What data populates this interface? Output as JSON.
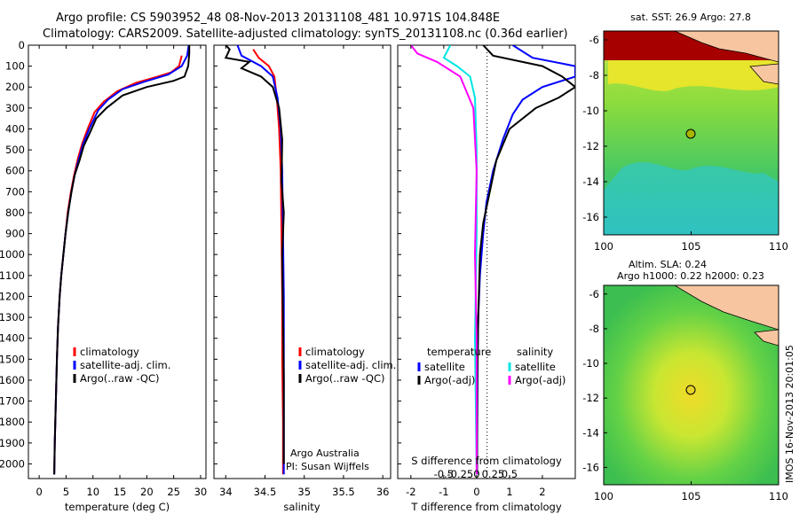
{
  "header": {
    "line1": "Argo profile: CS 5903952_48 08-Nov-2013 20131108_481 10.971S 104.848E",
    "line2": "Climatology: CARS2009. Satellite-adjusted climatology: synTS_20131108.nc (0.36d earlier)"
  },
  "colors": {
    "climatology": "#ff0000",
    "satellite": "#0000ff",
    "argo": "#000000",
    "sat_salinity": "#00e5e5",
    "argo_salinity_diff": "#ff00ff",
    "land": "#f7c6a0"
  },
  "footer": {
    "credit": "Argo Australia",
    "pi": "PI: Susan Wijffels",
    "imos_stamp": "IMOS 16-Nov-2013 20:01:05"
  },
  "chart_data": [
    {
      "id": "temperature",
      "type": "line",
      "xlabel": "temperature (deg C)",
      "ylabel": "",
      "xlim": [
        -2,
        31
      ],
      "ylim": [
        2070,
        0
      ],
      "xticks": [
        0,
        5,
        10,
        15,
        20,
        25,
        30
      ],
      "yticks": [
        0,
        100,
        200,
        300,
        400,
        500,
        600,
        700,
        800,
        900,
        1000,
        1100,
        1200,
        1300,
        1400,
        1500,
        1600,
        1700,
        1800,
        1900,
        2000
      ],
      "legend": [
        "climatology",
        "satellite-adj. clim.",
        "Argo(..raw -QC)"
      ],
      "legend_position": "lower-center",
      "series": [
        {
          "name": "climatology",
          "color": "#ff0000",
          "x": [
            26.5,
            26.0,
            24.5,
            22.0,
            18.0,
            14.5,
            12.0,
            10.3,
            9.0,
            8.0,
            7.2,
            6.5,
            5.9,
            5.3,
            4.9,
            4.5,
            4.1,
            3.8,
            3.5,
            3.3,
            3.1,
            2.9,
            2.8
          ],
          "y": [
            50,
            100,
            130,
            150,
            180,
            220,
            270,
            320,
            400,
            470,
            540,
            620,
            700,
            800,
            900,
            1000,
            1100,
            1200,
            1350,
            1500,
            1700,
            1900,
            2050
          ]
        },
        {
          "name": "satellite-adj. clim.",
          "color": "#0000ff",
          "x": [
            27.8,
            27.5,
            26.5,
            24.0,
            19.5,
            15.5,
            12.8,
            11.0,
            9.3,
            8.2,
            7.4,
            6.6,
            6.0,
            5.4,
            4.9,
            4.5,
            4.1,
            3.8,
            3.5,
            3.3,
            3.1,
            2.9,
            2.8
          ],
          "y": [
            0,
            50,
            100,
            140,
            175,
            210,
            260,
            310,
            400,
            470,
            540,
            620,
            700,
            800,
            900,
            1000,
            1100,
            1200,
            1350,
            1500,
            1700,
            1900,
            2050
          ]
        },
        {
          "name": "Argo(..raw -QC)",
          "color": "#000000",
          "x": [
            27.9,
            27.9,
            27.7,
            27.0,
            25.0,
            20.0,
            15.5,
            12.5,
            10.6,
            9.4,
            8.3,
            7.5,
            6.6,
            6.0,
            5.4,
            4.9,
            4.5,
            4.1,
            3.8,
            3.5,
            3.3,
            3.1,
            2.9,
            2.8
          ],
          "y": [
            0,
            40,
            100,
            150,
            170,
            200,
            240,
            300,
            350,
            420,
            480,
            550,
            620,
            700,
            800,
            900,
            1000,
            1100,
            1200,
            1350,
            1500,
            1700,
            1900,
            2050
          ]
        }
      ]
    },
    {
      "id": "salinity",
      "type": "line",
      "xlabel": "salinity",
      "ylabel": "",
      "xlim": [
        33.85,
        36.1
      ],
      "ylim": [
        2070,
        0
      ],
      "xticks": [
        34,
        34.5,
        35,
        35.5,
        36
      ],
      "legend": [
        "climatology",
        "satellite-adj. clim.",
        "Argo(..raw -QC)"
      ],
      "legend_position": "lower-center",
      "series": [
        {
          "name": "climatology",
          "color": "#ff0000",
          "x": [
            34.35,
            34.42,
            34.55,
            34.62,
            34.65,
            34.68,
            34.7,
            34.71,
            34.72,
            34.72,
            34.73,
            34.73
          ],
          "y": [
            20,
            60,
            100,
            150,
            250,
            400,
            600,
            900,
            1200,
            1500,
            1800,
            2050
          ]
        },
        {
          "name": "satellite-adj. clim.",
          "color": "#0000ff",
          "x": [
            34.15,
            34.2,
            34.45,
            34.6,
            34.66,
            34.7,
            34.72,
            34.73,
            34.74,
            34.74,
            34.74,
            34.74
          ],
          "y": [
            0,
            50,
            100,
            150,
            250,
            400,
            600,
            900,
            1200,
            1500,
            1800,
            2050
          ]
        },
        {
          "name": "Argo(..raw -QC)",
          "color": "#000000",
          "x": [
            34.0,
            34.05,
            34.0,
            34.3,
            34.2,
            34.45,
            34.6,
            34.68,
            34.72,
            34.71,
            34.74,
            34.72,
            34.73,
            34.74,
            34.74
          ],
          "y": [
            0,
            20,
            60,
            80,
            110,
            150,
            200,
            300,
            450,
            650,
            800,
            1000,
            1300,
            1600,
            2000
          ]
        }
      ]
    },
    {
      "id": "difference",
      "type": "line",
      "xlabel": "T difference from climatology",
      "x2label": "S difference from climatology",
      "ylabel": "",
      "xlim": [
        -2.4,
        3.0
      ],
      "ylim": [
        2070,
        0
      ],
      "xticks": [
        -2,
        -1,
        0,
        1,
        2
      ],
      "x2ticks": [
        "-0.5",
        "-0.25",
        "0",
        "0.25",
        "0.5"
      ],
      "x2tick_values": [
        -1,
        -0.5,
        0,
        0.5,
        1
      ],
      "legend_left_title": "temperature",
      "legend_right_title": "salinity",
      "legend": [
        "satellite",
        "Argo(-adj)",
        "satellite",
        "Argo(-adj)"
      ],
      "legend_position": "lower-center",
      "series": [
        {
          "name": "satellite",
          "color": "#0000ff",
          "x": [
            1.1,
            1.7,
            3.0,
            3.0,
            2.0,
            1.4,
            1.1,
            0.8,
            0.5,
            0.3,
            0.2,
            0.1,
            0.05,
            0.03,
            0.02,
            0.01
          ],
          "y": [
            0,
            60,
            100,
            150,
            200,
            260,
            330,
            450,
            600,
            750,
            900,
            1100,
            1300,
            1500,
            1800,
            2050
          ]
        },
        {
          "name": "Argo(-adj)",
          "color": "#000000",
          "x": [
            0.2,
            0.5,
            2.0,
            2.6,
            3.0,
            2.5,
            1.8,
            1.0,
            0.6,
            0.4,
            0.2,
            0.1,
            0.05,
            0.02,
            0.01
          ],
          "y": [
            0,
            50,
            100,
            150,
            200,
            250,
            300,
            400,
            550,
            700,
            850,
            1000,
            1300,
            1600,
            2050
          ]
        },
        {
          "name": "satellite",
          "color": "#00e5e5",
          "x": [
            -0.8,
            -1.0,
            -0.6,
            -0.2,
            -0.05,
            0.0,
            0.0,
            -0.05,
            0.0
          ],
          "y": [
            0,
            60,
            100,
            150,
            250,
            500,
            900,
            1400,
            2050
          ]
        },
        {
          "name": "Argo(-adj)",
          "color": "#ff00ff",
          "x": [
            -2.0,
            -1.8,
            -1.2,
            -0.5,
            -0.1,
            0.0,
            -0.05,
            0.0,
            0.0
          ],
          "y": [
            0,
            40,
            80,
            150,
            300,
            600,
            1000,
            1400,
            2050
          ]
        }
      ]
    },
    {
      "id": "sst_map",
      "type": "heatmap",
      "title": "sat. SST: 26.9 Argo: 27.8",
      "xlim": [
        100,
        110
      ],
      "ylim": [
        -17,
        -5.5
      ],
      "xticks": [
        100,
        105,
        110
      ],
      "yticks": [
        -6,
        -8,
        -10,
        -12,
        -14,
        -16
      ],
      "profile_lon": 104.848,
      "profile_lat": -10.971
    },
    {
      "id": "sla_map",
      "type": "heatmap",
      "title": "Altim. SLA: 0.24",
      "subtitle": "Argo h1000: 0.22 h2000: 0.23",
      "xlim": [
        100,
        110
      ],
      "ylim": [
        -17,
        -5.5
      ],
      "xticks": [
        100,
        105,
        110
      ],
      "yticks": [
        -6,
        -8,
        -10,
        -12,
        -14,
        -16
      ],
      "profile_lon": 104.848,
      "profile_lat": -10.971
    }
  ]
}
